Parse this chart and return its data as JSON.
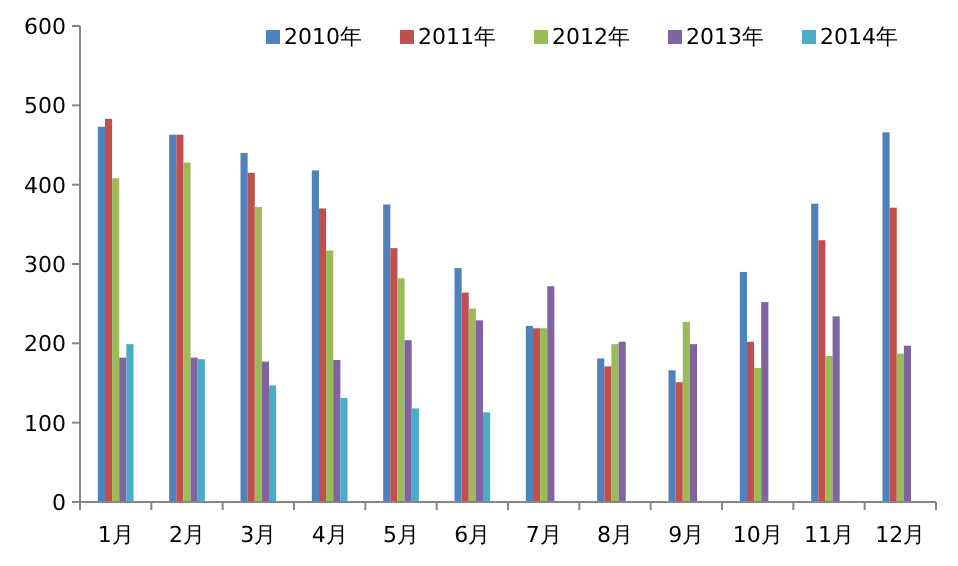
{
  "chart_data": {
    "type": "bar",
    "categories": [
      "1月",
      "2月",
      "3月",
      "4月",
      "5月",
      "6月",
      "7月",
      "8月",
      "9月",
      "10月",
      "11月",
      "12月"
    ],
    "series": [
      {
        "name": "2010年",
        "color": "#4f81bd",
        "values": [
          473,
          463,
          440,
          418,
          375,
          295,
          222,
          181,
          166,
          290,
          376,
          466
        ]
      },
      {
        "name": "2011年",
        "color": "#c0504d",
        "values": [
          483,
          463,
          415,
          370,
          320,
          264,
          219,
          171,
          151,
          202,
          330,
          371
        ]
      },
      {
        "name": "2012年",
        "color": "#9bbb59",
        "values": [
          408,
          428,
          372,
          317,
          282,
          244,
          219,
          199,
          227,
          169,
          184,
          187
        ]
      },
      {
        "name": "2013年",
        "color": "#8064a2",
        "values": [
          182,
          182,
          177,
          179,
          204,
          229,
          272,
          202,
          199,
          252,
          234,
          197
        ]
      },
      {
        "name": "2014年",
        "color": "#4bacc6",
        "values": [
          199,
          180,
          147,
          131,
          118,
          113,
          null,
          null,
          null,
          null,
          null,
          null
        ]
      }
    ],
    "ylim": [
      0,
      600
    ],
    "yticks": [
      0,
      100,
      200,
      300,
      400,
      500,
      600
    ],
    "legend": "top right"
  }
}
